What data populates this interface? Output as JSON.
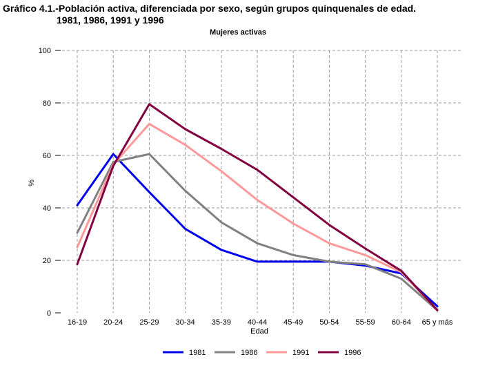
{
  "figure": {
    "title_line1": "Gráfico 4.1.-Población activa, diferenciada por sexo, según grupos quinquenales de edad.",
    "title_line2": "1981, 1986, 1991 y 1996"
  },
  "chart_data": {
    "type": "line",
    "title": "Mujeres activas",
    "xlabel": "Edad",
    "ylabel": "%",
    "ylim": [
      0,
      100
    ],
    "yticks": [
      0,
      20,
      40,
      60,
      80,
      100
    ],
    "categories": [
      "16-19",
      "20-24",
      "25-29",
      "30-34",
      "35-39",
      "40-44",
      "45-49",
      "50-54",
      "55-59",
      "60-64",
      "65 y más"
    ],
    "grid": true,
    "legend_position": "bottom",
    "series": [
      {
        "name": "1981",
        "color": "#0000ee",
        "values": [
          41,
          60.5,
          46,
          32,
          24,
          19.5,
          19.5,
          19.5,
          18,
          15,
          2.5
        ]
      },
      {
        "name": "1986",
        "color": "#808080",
        "values": [
          30.5,
          57.5,
          60.5,
          46.5,
          34.5,
          26.5,
          22,
          19.5,
          18.5,
          13,
          1
        ]
      },
      {
        "name": "1991",
        "color": "#ff9999",
        "values": [
          25,
          56.5,
          72,
          64,
          54,
          43,
          34,
          26.5,
          22,
          15.5,
          1
        ]
      },
      {
        "name": "1996",
        "color": "#800040",
        "values": [
          18.5,
          56,
          79.5,
          70,
          62.5,
          54.5,
          44,
          33.5,
          24.5,
          16,
          1
        ]
      }
    ]
  }
}
